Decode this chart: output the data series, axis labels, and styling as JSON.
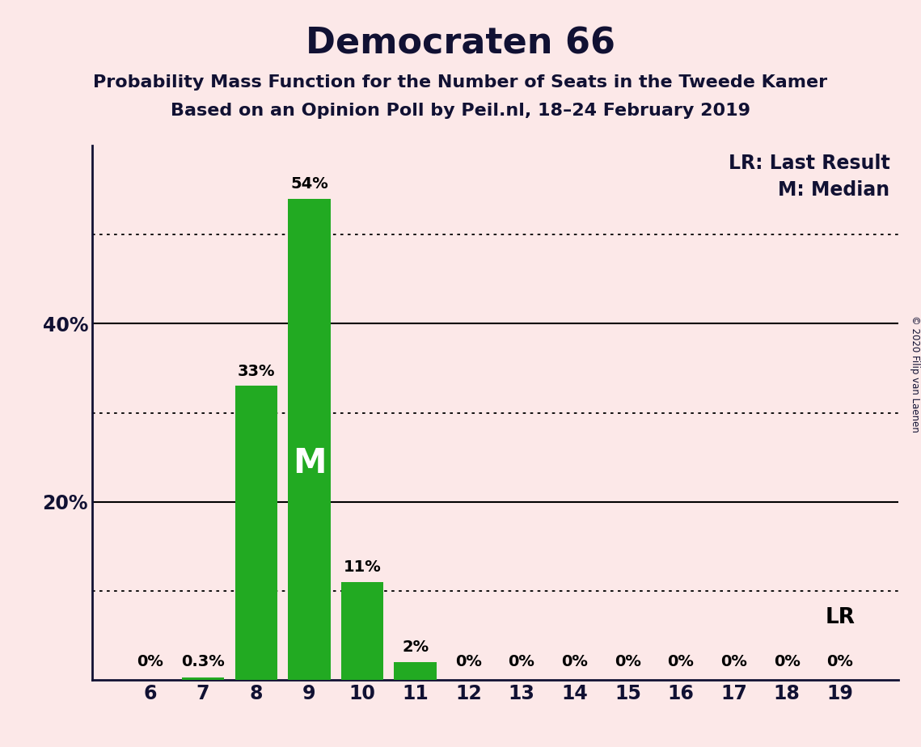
{
  "title": "Democraten 66",
  "subtitle1": "Probability Mass Function for the Number of Seats in the Tweede Kamer",
  "subtitle2": "Based on an Opinion Poll by Peil.nl, 18–24 February 2019",
  "copyright": "© 2020 Filip van Laenen",
  "categories": [
    6,
    7,
    8,
    9,
    10,
    11,
    12,
    13,
    14,
    15,
    16,
    17,
    18,
    19
  ],
  "values": [
    0,
    0.3,
    33,
    54,
    11,
    2,
    0,
    0,
    0,
    0,
    0,
    0,
    0,
    0
  ],
  "labels": [
    "0%",
    "0.3%",
    "33%",
    "54%",
    "11%",
    "2%",
    "0%",
    "0%",
    "0%",
    "0%",
    "0%",
    "0%",
    "0%",
    "0%"
  ],
  "bar_color": "#22aa22",
  "background_color": "#fce8e8",
  "median_bar": 9,
  "median_label": "M",
  "lr_bar": 19,
  "lr_label": "LR",
  "lr_legend": "LR: Last Result",
  "m_legend": "M: Median",
  "ylim": [
    0,
    60
  ],
  "solid_yticks": [
    20,
    40
  ],
  "dotted_yticks": [
    10,
    30,
    50
  ],
  "title_fontsize": 32,
  "subtitle_fontsize": 16,
  "label_fontsize": 14,
  "tick_fontsize": 17,
  "legend_fontsize": 17,
  "median_fontsize": 30
}
